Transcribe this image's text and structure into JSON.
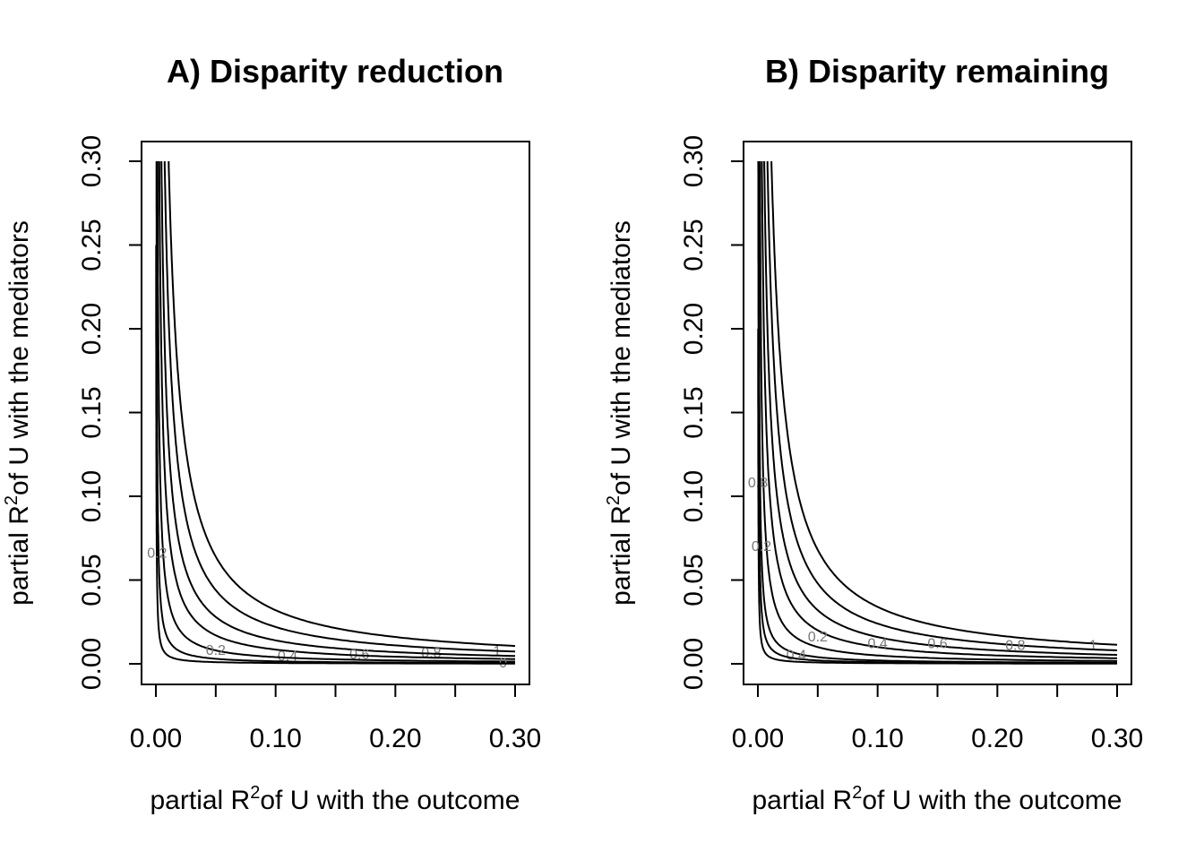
{
  "chart_data": [
    {
      "type": "contour",
      "title": "A) Disparity reduction",
      "xlabel": {
        "pre": "partial R",
        "sup": "2",
        "post": "of U with the outcome"
      },
      "ylabel": {
        "pre": "partial R",
        "sup": "2",
        "post": "of U with the mediators"
      },
      "xlim": [
        0,
        0.3
      ],
      "ylim": [
        0,
        0.3
      ],
      "xticks": [
        0.0,
        0.05,
        0.1,
        0.15,
        0.2,
        0.25,
        0.3
      ],
      "xticklabels": [
        "0.00",
        "",
        "0.10",
        "",
        "0.20",
        "",
        "0.30"
      ],
      "yticks": [
        0.0,
        0.05,
        0.1,
        0.15,
        0.2,
        0.25,
        0.3
      ],
      "yticklabels": [
        "0.00",
        "0.05",
        "0.10",
        "0.15",
        "0.20",
        "0.25",
        "0.30"
      ],
      "contours": [
        {
          "label": "1",
          "k": 0.0032,
          "label_at": [
            0.285,
            0.0075
          ]
        },
        {
          "label": "0.8",
          "k": 0.0022,
          "label_at": [
            0.23,
            0.0065
          ]
        },
        {
          "label": "0.6",
          "k": 0.0014,
          "label_at": [
            0.17,
            0.0055
          ]
        },
        {
          "label": "0.4",
          "k": 0.00085,
          "label_at": [
            0.11,
            0.0045
          ]
        },
        {
          "label": "0.2",
          "k": 0.0004,
          "label_at": [
            0.05,
            0.008
          ]
        },
        {
          "label": "0",
          "k": 0.00015,
          "label_at": [
            0.29,
            0.0005
          ]
        },
        {
          "label": "0.2",
          "k": 5e-05,
          "label_at": [
            0.001,
            0.066
          ]
        }
      ]
    },
    {
      "type": "contour",
      "title": "B) Disparity remaining",
      "xlabel": {
        "pre": "partial R",
        "sup": "2",
        "post": "of U with the outcome"
      },
      "ylabel": {
        "pre": "partial R",
        "sup": "2",
        "post": "of U with the mediators"
      },
      "xlim": [
        0,
        0.3
      ],
      "ylim": [
        0,
        0.3
      ],
      "xticks": [
        0.0,
        0.05,
        0.1,
        0.15,
        0.2,
        0.25,
        0.3
      ],
      "xticklabels": [
        "0.00",
        "",
        "0.10",
        "",
        "0.20",
        "",
        "0.30"
      ],
      "yticks": [
        0.0,
        0.05,
        0.1,
        0.15,
        0.2,
        0.25,
        0.3
      ],
      "yticklabels": [
        "0.00",
        "0.05",
        "0.10",
        "0.15",
        "0.20",
        "0.25",
        "0.30"
      ],
      "contours": [
        {
          "label": "1",
          "k": 0.0034,
          "label_at": [
            0.28,
            0.011
          ]
        },
        {
          "label": "0.8",
          "k": 0.0024,
          "label_at": [
            0.215,
            0.011
          ]
        },
        {
          "label": "0.6",
          "k": 0.0016,
          "label_at": [
            0.15,
            0.012
          ]
        },
        {
          "label": "0.4",
          "k": 0.001,
          "label_at": [
            0.1,
            0.012
          ]
        },
        {
          "label": "0.2",
          "k": 0.0005,
          "label_at": [
            0.05,
            0.016
          ]
        },
        {
          "label": "0.4",
          "k": 0.0002,
          "label_at": [
            0.032,
            0.005
          ]
        },
        {
          "label": "0.8",
          "k": 0.0001,
          "label_at": [
            0.0,
            0.108
          ]
        },
        {
          "label": "0.2",
          "k": 4e-05,
          "label_at": [
            0.003,
            0.07
          ]
        }
      ]
    }
  ]
}
